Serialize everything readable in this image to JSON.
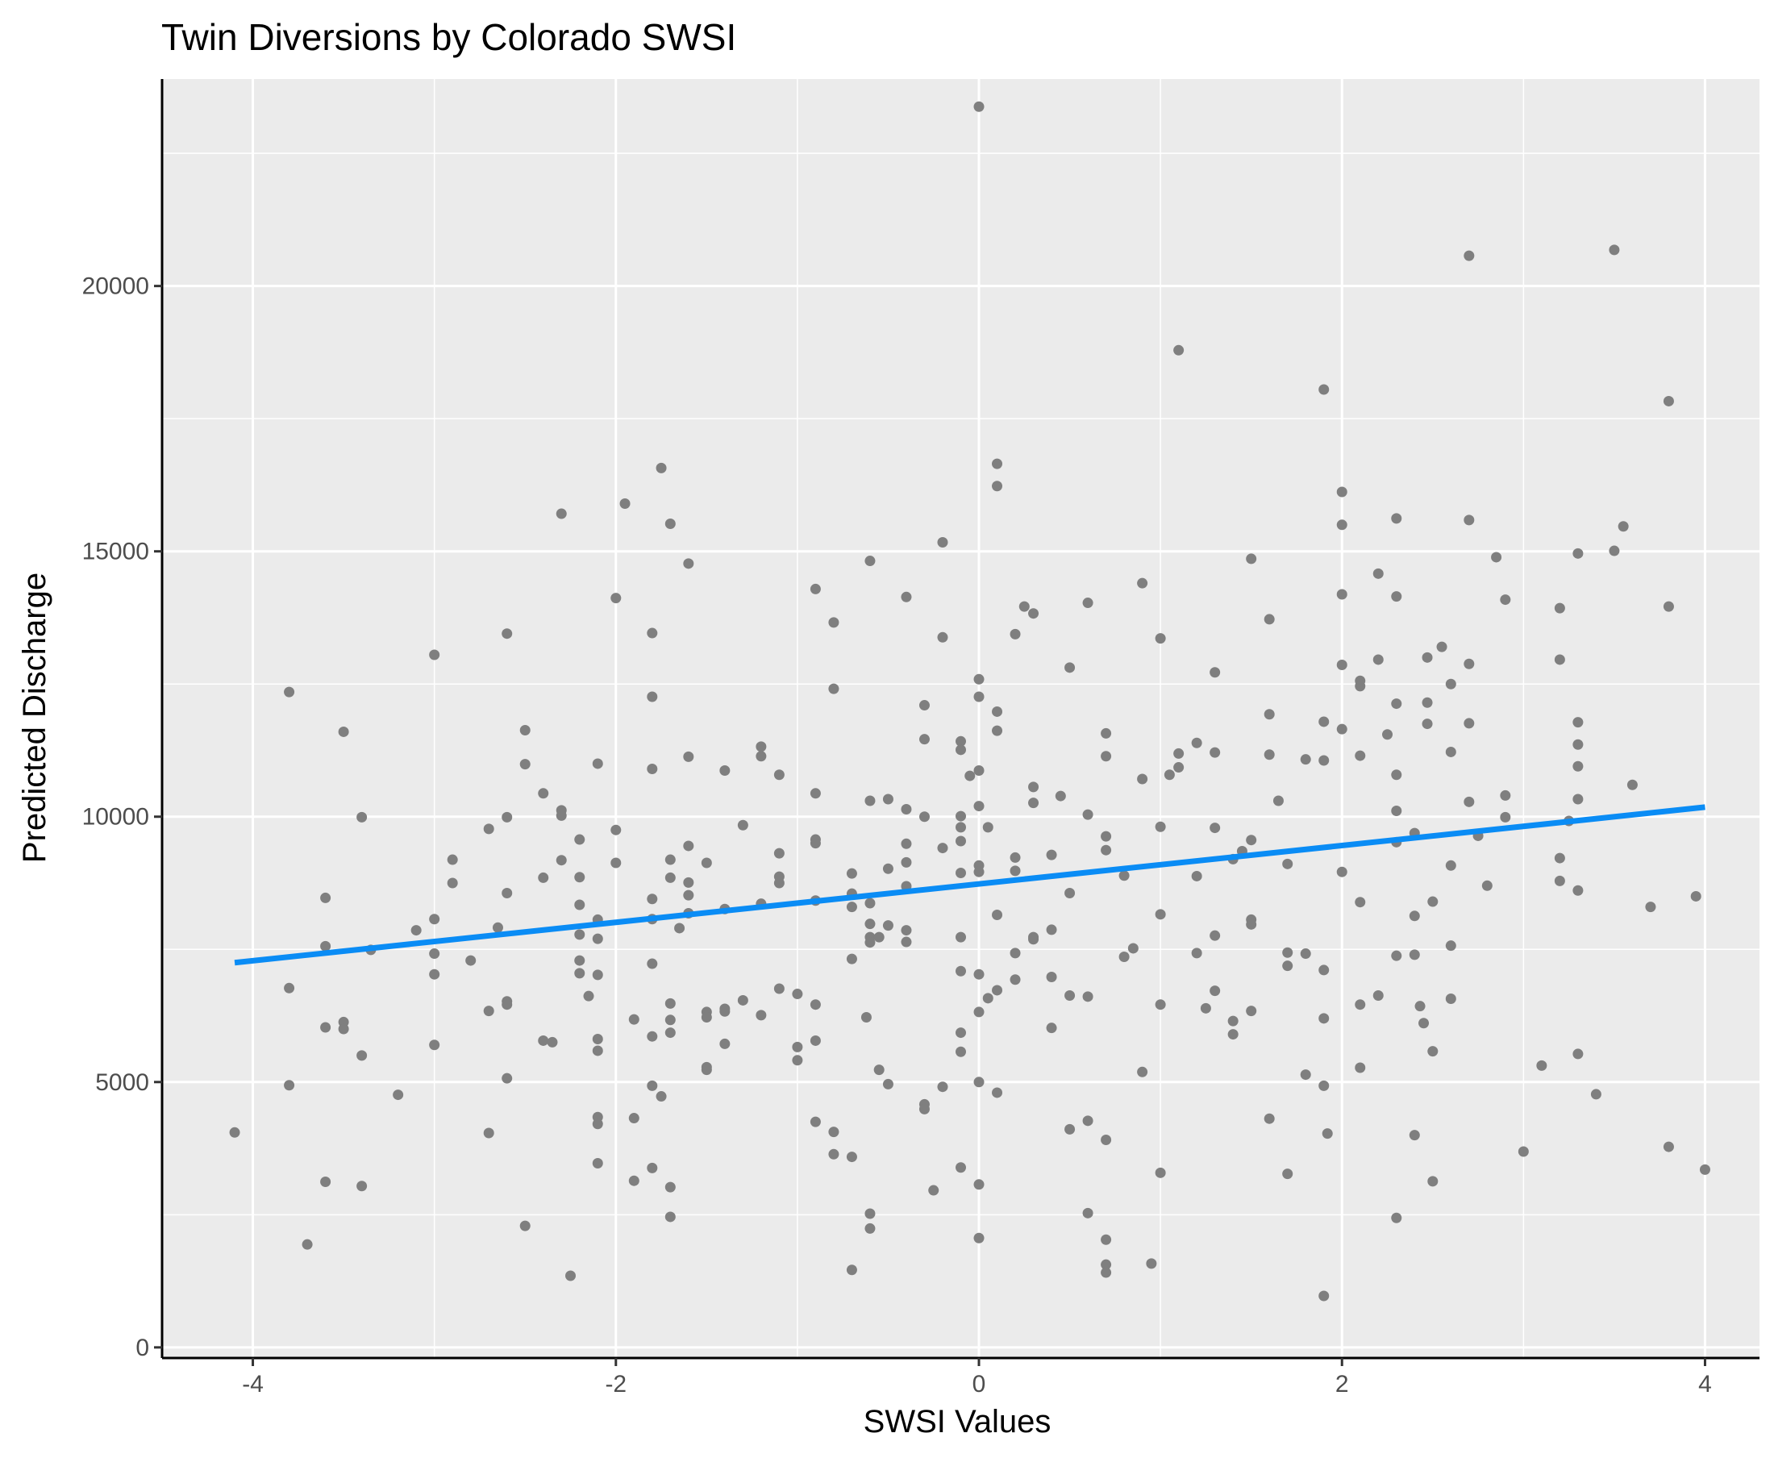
{
  "chart_data": {
    "type": "scatter",
    "title": "Twin Diversions by Colorado SWSI",
    "xlabel": "SWSI Values",
    "ylabel": "Predicted Discharge",
    "xlim": [
      -4.5,
      4.3
    ],
    "ylim": [
      -200,
      23900
    ],
    "x_ticks": [
      -4,
      -2,
      0,
      2,
      4
    ],
    "x_tick_labels": [
      "-4",
      "-2",
      "0",
      "2",
      "4"
    ],
    "y_ticks": [
      0,
      5000,
      10000,
      15000,
      20000
    ],
    "y_tick_labels": [
      "0",
      "5000",
      "10000",
      "15000",
      "20000"
    ],
    "grid": true,
    "legend": "none",
    "colors": {
      "panel": "#ebebeb",
      "grid": "#ffffff",
      "points": "#7f7f7f",
      "trend": "#0a8cf5",
      "axis": "#000000"
    },
    "trend_line": {
      "x": [
        -4.1,
        4.0
      ],
      "y": [
        7250,
        10180
      ]
    },
    "points": [
      [
        -4.1,
        4050
      ],
      [
        -3.8,
        12350
      ],
      [
        -3.8,
        6770
      ],
      [
        -3.8,
        4940
      ],
      [
        -3.7,
        1940
      ],
      [
        -3.6,
        8470
      ],
      [
        -3.6,
        7560
      ],
      [
        -3.6,
        6030
      ],
      [
        -3.6,
        3120
      ],
      [
        -3.5,
        11600
      ],
      [
        -3.5,
        6130
      ],
      [
        -3.5,
        6000
      ],
      [
        -3.4,
        9990
      ],
      [
        -3.4,
        5500
      ],
      [
        -3.4,
        3040
      ],
      [
        -3.35,
        7490
      ],
      [
        -3.2,
        4760
      ],
      [
        -3.1,
        7860
      ],
      [
        -3.0,
        13050
      ],
      [
        -3.0,
        8070
      ],
      [
        -3.0,
        7420
      ],
      [
        -3.0,
        7030
      ],
      [
        -3.0,
        5700
      ],
      [
        -2.9,
        9190
      ],
      [
        -2.9,
        8750
      ],
      [
        -2.8,
        7290
      ],
      [
        -2.7,
        9770
      ],
      [
        -2.7,
        6340
      ],
      [
        -2.7,
        4040
      ],
      [
        -2.65,
        7910
      ],
      [
        -2.6,
        13450
      ],
      [
        -2.6,
        9990
      ],
      [
        -2.6,
        8560
      ],
      [
        -2.6,
        6520
      ],
      [
        -2.6,
        6460
      ],
      [
        -2.6,
        5070
      ],
      [
        -2.5,
        11630
      ],
      [
        -2.5,
        10990
      ],
      [
        -2.5,
        2290
      ],
      [
        -2.4,
        10440
      ],
      [
        -2.4,
        8850
      ],
      [
        -2.4,
        5780
      ],
      [
        -2.35,
        5750
      ],
      [
        -2.3,
        15710
      ],
      [
        -2.3,
        10120
      ],
      [
        -2.3,
        10020
      ],
      [
        -2.3,
        9180
      ],
      [
        -2.2,
        9570
      ],
      [
        -2.2,
        8860
      ],
      [
        -2.2,
        8340
      ],
      [
        -2.2,
        7780
      ],
      [
        -2.2,
        7290
      ],
      [
        -2.2,
        7050
      ],
      [
        -2.25,
        1350
      ],
      [
        -2.15,
        6620
      ],
      [
        -2.1,
        11000
      ],
      [
        -2.1,
        8060
      ],
      [
        -2.1,
        7700
      ],
      [
        -2.1,
        7020
      ],
      [
        -2.1,
        5810
      ],
      [
        -2.1,
        5590
      ],
      [
        -2.1,
        4340
      ],
      [
        -2.1,
        4210
      ],
      [
        -2.1,
        3470
      ],
      [
        -2.0,
        14120
      ],
      [
        -2.0,
        9750
      ],
      [
        -2.0,
        9130
      ],
      [
        -1.95,
        15900
      ],
      [
        -1.9,
        6180
      ],
      [
        -1.9,
        4320
      ],
      [
        -1.9,
        3140
      ],
      [
        -1.8,
        13460
      ],
      [
        -1.8,
        12260
      ],
      [
        -1.8,
        10900
      ],
      [
        -1.8,
        8450
      ],
      [
        -1.8,
        8070
      ],
      [
        -1.8,
        7230
      ],
      [
        -1.8,
        5860
      ],
      [
        -1.8,
        4930
      ],
      [
        -1.8,
        3380
      ],
      [
        -1.75,
        16570
      ],
      [
        -1.75,
        4730
      ],
      [
        -1.7,
        15520
      ],
      [
        -1.7,
        9190
      ],
      [
        -1.7,
        8850
      ],
      [
        -1.7,
        6480
      ],
      [
        -1.7,
        6170
      ],
      [
        -1.7,
        5930
      ],
      [
        -1.7,
        3020
      ],
      [
        -1.7,
        2460
      ],
      [
        -1.65,
        7900
      ],
      [
        -1.6,
        14770
      ],
      [
        -1.6,
        11130
      ],
      [
        -1.6,
        9450
      ],
      [
        -1.6,
        8760
      ],
      [
        -1.6,
        8520
      ],
      [
        -1.6,
        8180
      ],
      [
        -1.5,
        9130
      ],
      [
        -1.5,
        6320
      ],
      [
        -1.5,
        6220
      ],
      [
        -1.5,
        5280
      ],
      [
        -1.5,
        5230
      ],
      [
        -1.4,
        10870
      ],
      [
        -1.4,
        8260
      ],
      [
        -1.4,
        6380
      ],
      [
        -1.4,
        6330
      ],
      [
        -1.4,
        5720
      ],
      [
        -1.3,
        9840
      ],
      [
        -1.3,
        6540
      ],
      [
        -1.2,
        11320
      ],
      [
        -1.2,
        11140
      ],
      [
        -1.2,
        8360
      ],
      [
        -1.2,
        6260
      ],
      [
        -1.1,
        10790
      ],
      [
        -1.1,
        9310
      ],
      [
        -1.1,
        8870
      ],
      [
        -1.1,
        8750
      ],
      [
        -1.1,
        6760
      ],
      [
        -1.0,
        6660
      ],
      [
        -1.0,
        5660
      ],
      [
        -1.0,
        5410
      ],
      [
        -0.9,
        14290
      ],
      [
        -0.9,
        10440
      ],
      [
        -0.9,
        9570
      ],
      [
        -0.9,
        9500
      ],
      [
        -0.9,
        8420
      ],
      [
        -0.9,
        6460
      ],
      [
        -0.9,
        5780
      ],
      [
        -0.9,
        4250
      ],
      [
        -0.8,
        13660
      ],
      [
        -0.8,
        12410
      ],
      [
        -0.8,
        4060
      ],
      [
        -0.8,
        3640
      ],
      [
        -0.7,
        8930
      ],
      [
        -0.7,
        8550
      ],
      [
        -0.7,
        8300
      ],
      [
        -0.7,
        7320
      ],
      [
        -0.7,
        3590
      ],
      [
        -0.7,
        1460
      ],
      [
        -0.6,
        14820
      ],
      [
        -0.6,
        10300
      ],
      [
        -0.6,
        8370
      ],
      [
        -0.6,
        7730
      ],
      [
        -0.6,
        7630
      ],
      [
        -0.6,
        7980
      ],
      [
        -0.62,
        6220
      ],
      [
        -0.6,
        2520
      ],
      [
        -0.6,
        2240
      ],
      [
        -0.55,
        7730
      ],
      [
        -0.55,
        5230
      ],
      [
        -0.5,
        10330
      ],
      [
        -0.5,
        9020
      ],
      [
        -0.5,
        7950
      ],
      [
        -0.5,
        4960
      ],
      [
        -0.4,
        14140
      ],
      [
        -0.4,
        10140
      ],
      [
        -0.4,
        9490
      ],
      [
        -0.4,
        9140
      ],
      [
        -0.4,
        8690
      ],
      [
        -0.4,
        7860
      ],
      [
        -0.4,
        7640
      ],
      [
        -0.3,
        12100
      ],
      [
        -0.3,
        11460
      ],
      [
        -0.3,
        10000
      ],
      [
        -0.3,
        4580
      ],
      [
        -0.3,
        4490
      ],
      [
        -0.25,
        2960
      ],
      [
        -0.2,
        15170
      ],
      [
        -0.2,
        13380
      ],
      [
        -0.2,
        9410
      ],
      [
        -0.2,
        4910
      ],
      [
        -0.1,
        11420
      ],
      [
        -0.1,
        11260
      ],
      [
        -0.1,
        10010
      ],
      [
        -0.1,
        9800
      ],
      [
        -0.1,
        9540
      ],
      [
        -0.1,
        8940
      ],
      [
        -0.1,
        7730
      ],
      [
        -0.1,
        7090
      ],
      [
        -0.1,
        5930
      ],
      [
        -0.1,
        5570
      ],
      [
        -0.1,
        3390
      ],
      [
        -0.05,
        10770
      ],
      [
        0.0,
        23380
      ],
      [
        0.0,
        12590
      ],
      [
        0.0,
        12260
      ],
      [
        0.0,
        10870
      ],
      [
        0.0,
        10200
      ],
      [
        0.0,
        9080
      ],
      [
        0.0,
        8960
      ],
      [
        0.0,
        7030
      ],
      [
        0.0,
        6320
      ],
      [
        0.0,
        5000
      ],
      [
        0.0,
        3070
      ],
      [
        0.0,
        2060
      ],
      [
        0.05,
        9800
      ],
      [
        0.1,
        16650
      ],
      [
        0.1,
        16230
      ],
      [
        0.1,
        11980
      ],
      [
        0.1,
        11620
      ],
      [
        0.1,
        8150
      ],
      [
        0.1,
        6730
      ],
      [
        0.05,
        6580
      ],
      [
        0.1,
        4800
      ],
      [
        0.2,
        13440
      ],
      [
        0.2,
        9230
      ],
      [
        0.2,
        8980
      ],
      [
        0.2,
        7430
      ],
      [
        0.2,
        6930
      ],
      [
        0.25,
        13960
      ],
      [
        0.3,
        13830
      ],
      [
        0.3,
        10560
      ],
      [
        0.3,
        10260
      ],
      [
        0.3,
        7730
      ],
      [
        0.3,
        7690
      ],
      [
        0.4,
        9280
      ],
      [
        0.4,
        7870
      ],
      [
        0.4,
        6980
      ],
      [
        0.4,
        6020
      ],
      [
        0.45,
        10390
      ],
      [
        0.5,
        12810
      ],
      [
        0.5,
        8560
      ],
      [
        0.5,
        6630
      ],
      [
        0.5,
        4110
      ],
      [
        0.6,
        14030
      ],
      [
        0.6,
        10040
      ],
      [
        0.6,
        6610
      ],
      [
        0.6,
        4270
      ],
      [
        0.6,
        2530
      ],
      [
        0.7,
        11570
      ],
      [
        0.7,
        11140
      ],
      [
        0.7,
        9630
      ],
      [
        0.7,
        9370
      ],
      [
        0.7,
        3910
      ],
      [
        0.7,
        2030
      ],
      [
        0.7,
        1560
      ],
      [
        0.7,
        1410
      ],
      [
        0.8,
        8890
      ],
      [
        0.8,
        7360
      ],
      [
        0.85,
        7520
      ],
      [
        0.9,
        14400
      ],
      [
        0.9,
        10710
      ],
      [
        0.9,
        5190
      ],
      [
        0.95,
        1580
      ],
      [
        1.0,
        13360
      ],
      [
        1.0,
        9810
      ],
      [
        1.0,
        8160
      ],
      [
        1.0,
        6460
      ],
      [
        1.0,
        3290
      ],
      [
        1.05,
        10790
      ],
      [
        1.1,
        18790
      ],
      [
        1.1,
        11190
      ],
      [
        1.1,
        10930
      ],
      [
        1.2,
        11390
      ],
      [
        1.2,
        8880
      ],
      [
        1.2,
        7430
      ],
      [
        1.25,
        6390
      ],
      [
        1.3,
        12720
      ],
      [
        1.3,
        11210
      ],
      [
        1.3,
        9790
      ],
      [
        1.3,
        7760
      ],
      [
        1.3,
        6720
      ],
      [
        1.4,
        9200
      ],
      [
        1.4,
        6150
      ],
      [
        1.4,
        5900
      ],
      [
        1.45,
        9350
      ],
      [
        1.5,
        14860
      ],
      [
        1.5,
        9560
      ],
      [
        1.5,
        8060
      ],
      [
        1.5,
        7970
      ],
      [
        1.5,
        6340
      ],
      [
        1.6,
        13720
      ],
      [
        1.6,
        11930
      ],
      [
        1.6,
        11170
      ],
      [
        1.6,
        4310
      ],
      [
        1.65,
        10300
      ],
      [
        1.7,
        9110
      ],
      [
        1.7,
        7440
      ],
      [
        1.7,
        7190
      ],
      [
        1.7,
        3270
      ],
      [
        1.8,
        11080
      ],
      [
        1.8,
        7420
      ],
      [
        1.8,
        5140
      ],
      [
        1.9,
        18050
      ],
      [
        1.9,
        11790
      ],
      [
        1.9,
        11060
      ],
      [
        1.9,
        7110
      ],
      [
        1.9,
        6200
      ],
      [
        1.9,
        4930
      ],
      [
        1.92,
        4030
      ],
      [
        1.9,
        970
      ],
      [
        2.0,
        16120
      ],
      [
        2.0,
        15500
      ],
      [
        2.0,
        14190
      ],
      [
        2.0,
        12860
      ],
      [
        2.0,
        11650
      ],
      [
        2.0,
        8960
      ],
      [
        2.1,
        12560
      ],
      [
        2.1,
        12460
      ],
      [
        2.1,
        11150
      ],
      [
        2.1,
        8390
      ],
      [
        2.1,
        6460
      ],
      [
        2.1,
        5270
      ],
      [
        2.2,
        14580
      ],
      [
        2.2,
        12960
      ],
      [
        2.2,
        6630
      ],
      [
        2.25,
        11550
      ],
      [
        2.3,
        15620
      ],
      [
        2.3,
        14150
      ],
      [
        2.3,
        12130
      ],
      [
        2.3,
        10790
      ],
      [
        2.3,
        10110
      ],
      [
        2.3,
        9520
      ],
      [
        2.3,
        7380
      ],
      [
        2.3,
        2440
      ],
      [
        2.4,
        9690
      ],
      [
        2.4,
        8130
      ],
      [
        2.4,
        7400
      ],
      [
        2.4,
        4000
      ],
      [
        2.43,
        6430
      ],
      [
        2.45,
        6110
      ],
      [
        2.47,
        13000
      ],
      [
        2.47,
        12150
      ],
      [
        2.47,
        11750
      ],
      [
        2.5,
        8400
      ],
      [
        2.5,
        5580
      ],
      [
        2.5,
        3130
      ],
      [
        2.55,
        13200
      ],
      [
        2.6,
        12500
      ],
      [
        2.6,
        11220
      ],
      [
        2.6,
        9080
      ],
      [
        2.6,
        7570
      ],
      [
        2.6,
        6570
      ],
      [
        2.7,
        20570
      ],
      [
        2.7,
        15590
      ],
      [
        2.7,
        12880
      ],
      [
        2.7,
        11760
      ],
      [
        2.7,
        10280
      ],
      [
        2.75,
        9640
      ],
      [
        2.8,
        8700
      ],
      [
        2.85,
        14890
      ],
      [
        2.9,
        14090
      ],
      [
        2.9,
        10400
      ],
      [
        2.9,
        9990
      ],
      [
        3.0,
        3690
      ],
      [
        3.1,
        5310
      ],
      [
        3.2,
        13930
      ],
      [
        3.2,
        12960
      ],
      [
        3.2,
        9220
      ],
      [
        3.2,
        8790
      ],
      [
        3.25,
        9920
      ],
      [
        3.3,
        14960
      ],
      [
        3.3,
        11780
      ],
      [
        3.3,
        11360
      ],
      [
        3.3,
        10950
      ],
      [
        3.3,
        10330
      ],
      [
        3.3,
        8610
      ],
      [
        3.3,
        5530
      ],
      [
        3.4,
        4770
      ],
      [
        3.5,
        20680
      ],
      [
        3.5,
        15010
      ],
      [
        3.55,
        15470
      ],
      [
        3.6,
        10600
      ],
      [
        3.7,
        8300
      ],
      [
        3.8,
        17830
      ],
      [
        3.8,
        13960
      ],
      [
        3.8,
        3780
      ],
      [
        3.95,
        8500
      ],
      [
        4.0,
        3350
      ]
    ]
  }
}
